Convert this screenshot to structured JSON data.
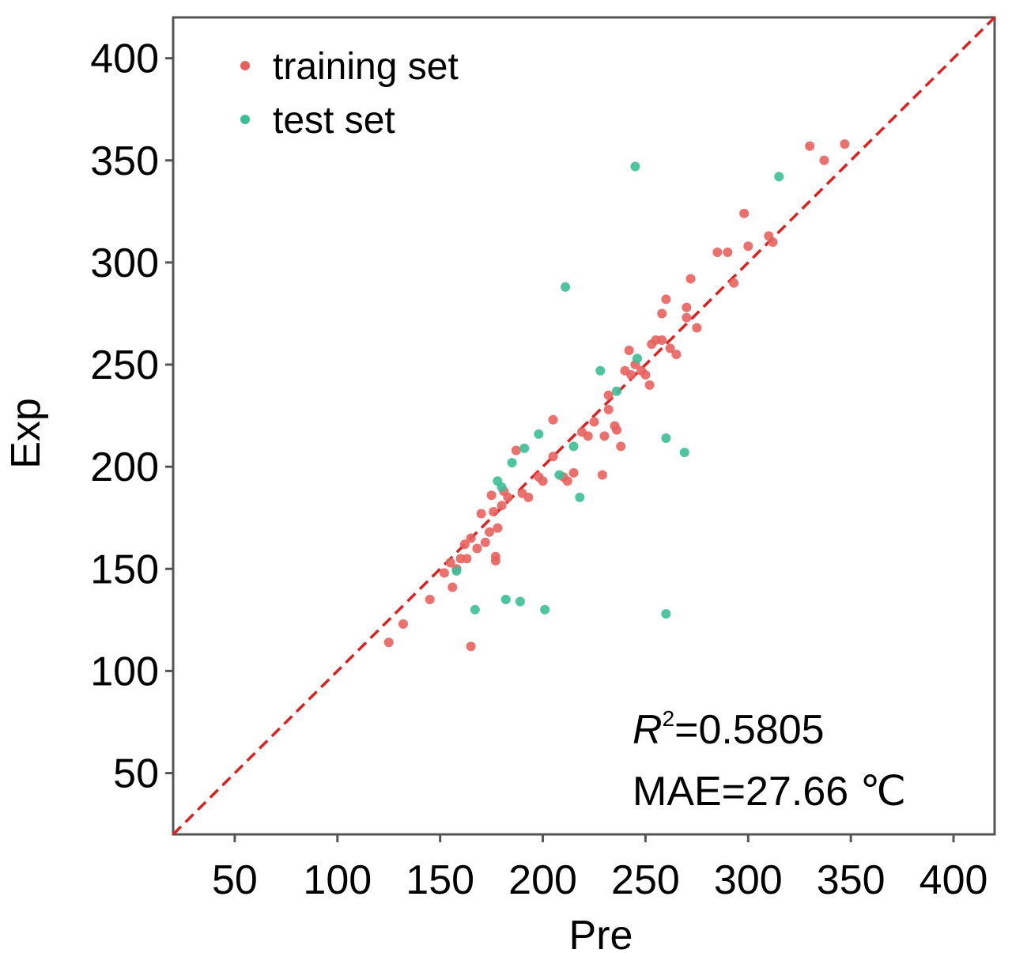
{
  "chart_data": {
    "type": "scatter",
    "title": "",
    "xlabel": "Pre",
    "ylabel": "Exp",
    "xlim": [
      20,
      420
    ],
    "ylim": [
      20,
      420
    ],
    "xticks": [
      50,
      100,
      150,
      200,
      250,
      300,
      350,
      400
    ],
    "yticks": [
      50,
      100,
      150,
      200,
      250,
      300,
      350,
      400
    ],
    "grid": false,
    "legend_position": "top-left",
    "reference_line": {
      "style": "dashed",
      "color": "#e02020",
      "from": [
        20,
        20
      ],
      "to": [
        420,
        420
      ]
    },
    "series": [
      {
        "name": "training set",
        "color": "#e8625d",
        "points": [
          [
            125,
            114
          ],
          [
            132,
            123
          ],
          [
            145,
            135
          ],
          [
            152,
            148
          ],
          [
            155,
            153
          ],
          [
            156,
            141
          ],
          [
            158,
            150
          ],
          [
            160,
            155
          ],
          [
            162,
            162
          ],
          [
            163,
            155
          ],
          [
            165,
            165
          ],
          [
            165,
            112
          ],
          [
            168,
            160
          ],
          [
            170,
            177
          ],
          [
            172,
            163
          ],
          [
            174,
            168
          ],
          [
            175,
            186
          ],
          [
            176,
            178
          ],
          [
            177,
            156
          ],
          [
            177,
            154
          ],
          [
            178,
            170
          ],
          [
            180,
            181
          ],
          [
            181,
            188
          ],
          [
            183,
            185
          ],
          [
            187,
            208
          ],
          [
            190,
            187
          ],
          [
            193,
            185
          ],
          [
            198,
            195
          ],
          [
            200,
            193
          ],
          [
            205,
            205
          ],
          [
            205,
            223
          ],
          [
            210,
            195
          ],
          [
            212,
            193
          ],
          [
            215,
            197
          ],
          [
            219,
            217
          ],
          [
            222,
            215
          ],
          [
            225,
            222
          ],
          [
            229,
            196
          ],
          [
            230,
            215
          ],
          [
            232,
            228
          ],
          [
            232,
            235
          ],
          [
            235,
            220
          ],
          [
            236,
            218
          ],
          [
            238,
            210
          ],
          [
            240,
            247
          ],
          [
            242,
            257
          ],
          [
            243,
            245
          ],
          [
            245,
            250
          ],
          [
            248,
            247
          ],
          [
            250,
            245
          ],
          [
            252,
            240
          ],
          [
            253,
            260
          ],
          [
            255,
            262
          ],
          [
            258,
            262
          ],
          [
            258,
            275
          ],
          [
            260,
            282
          ],
          [
            262,
            258
          ],
          [
            265,
            255
          ],
          [
            270,
            278
          ],
          [
            270,
            273
          ],
          [
            272,
            292
          ],
          [
            275,
            268
          ],
          [
            285,
            305
          ],
          [
            290,
            305
          ],
          [
            293,
            290
          ],
          [
            298,
            324
          ],
          [
            300,
            308
          ],
          [
            310,
            313
          ],
          [
            312,
            310
          ],
          [
            330,
            357
          ],
          [
            337,
            350
          ],
          [
            347,
            358
          ]
        ]
      },
      {
        "name": "test set",
        "color": "#3bbf93",
        "points": [
          [
            158,
            149
          ],
          [
            167,
            130
          ],
          [
            178,
            193
          ],
          [
            180,
            190
          ],
          [
            182,
            135
          ],
          [
            185,
            202
          ],
          [
            189,
            134
          ],
          [
            191,
            209
          ],
          [
            198,
            216
          ],
          [
            201,
            130
          ],
          [
            208,
            196
          ],
          [
            211,
            288
          ],
          [
            215,
            210
          ],
          [
            218,
            185
          ],
          [
            228,
            247
          ],
          [
            236,
            237
          ],
          [
            245,
            347
          ],
          [
            246,
            253
          ],
          [
            260,
            128
          ],
          [
            260,
            214
          ],
          [
            269,
            207
          ],
          [
            315,
            342
          ]
        ]
      }
    ],
    "annotations": {
      "r2_symbol": "R",
      "r2_superscript": "2",
      "r2_value": "=0.5805",
      "mae": "MAE=27.66 ℃"
    }
  }
}
